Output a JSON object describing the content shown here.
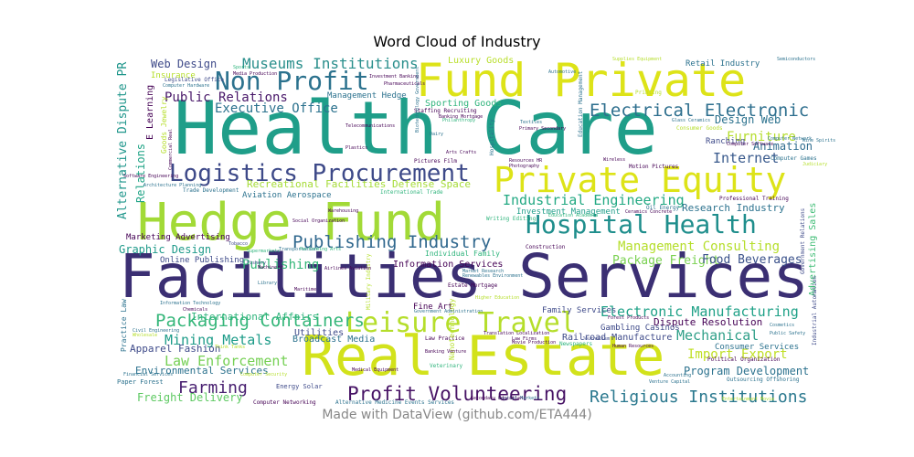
{
  "chart_data": {
    "type": "wordcloud",
    "title": "Word Cloud of Industry",
    "footer": "Made with DataView (github.com/ETA444)",
    "colormap": "viridis",
    "words": [
      {
        "text": "Health Care",
        "weight": 1.0,
        "color": "#1f9e89"
      },
      {
        "text": "Facilities Services",
        "weight": 0.92,
        "color": "#3b2f73"
      },
      {
        "text": "Real Estate",
        "weight": 0.85,
        "color": "#d2e21b"
      },
      {
        "text": "Hedge Fund",
        "weight": 0.75,
        "color": "#a2da37"
      },
      {
        "text": "Fund Private",
        "weight": 0.72,
        "color": "#dde318"
      },
      {
        "text": "Private Equity",
        "weight": 0.55,
        "color": "#dde318"
      },
      {
        "text": "Leisure Travel",
        "weight": 0.42,
        "color": "#b5de2b"
      },
      {
        "text": "Logistics Procurement",
        "weight": 0.4,
        "color": "#3e4a89"
      },
      {
        "text": "Non Profit",
        "weight": 0.4,
        "color": "#2c728e"
      },
      {
        "text": "Hospital Health",
        "weight": 0.38,
        "color": "#1f8e8c"
      },
      {
        "text": "Profit Volunteering",
        "weight": 0.33,
        "color": "#471365"
      },
      {
        "text": "Packaging Containers",
        "weight": 0.28,
        "color": "#34b679"
      },
      {
        "text": "Publishing Industry",
        "weight": 0.27,
        "color": "#31688e"
      },
      {
        "text": "Electrical Electronic",
        "weight": 0.27,
        "color": "#2e6f8e"
      },
      {
        "text": "Religious Institutions",
        "weight": 0.26,
        "color": "#2a788e"
      },
      {
        "text": "Industrial Engineering",
        "weight": 0.19,
        "color": "#23a983"
      },
      {
        "text": "Electronic Manufacturing",
        "weight": 0.19,
        "color": "#1fa187"
      },
      {
        "text": "Museums Institutions",
        "weight": 0.2,
        "color": "#2a8f8c"
      },
      {
        "text": "Farming",
        "weight": 0.2,
        "color": "#481f70"
      },
      {
        "text": "Mechanical",
        "weight": 0.18,
        "color": "#2f9f88"
      },
      {
        "text": "Furniture",
        "weight": 0.18,
        "color": "#b4dd2c"
      },
      {
        "text": "Internet",
        "weight": 0.18,
        "color": "#38598c"
      },
      {
        "text": "Law Enforcement",
        "weight": 0.17,
        "color": "#75d054"
      },
      {
        "text": "Mining Metals",
        "weight": 0.17,
        "color": "#1e9c89"
      },
      {
        "text": "Management Consulting",
        "weight": 0.16,
        "color": "#b5de2b"
      },
      {
        "text": "Import Export",
        "weight": 0.16,
        "color": "#c0df25"
      },
      {
        "text": "Public Relations",
        "weight": 0.15,
        "color": "#481769"
      },
      {
        "text": "Executive Office",
        "weight": 0.15,
        "color": "#2c728e"
      },
      {
        "text": "Publishing",
        "weight": 0.14,
        "color": "#35b779"
      },
      {
        "text": "Web Design",
        "weight": 0.13,
        "color": "#3e4a89"
      },
      {
        "text": "Design Web",
        "weight": 0.13,
        "color": "#2c728e"
      },
      {
        "text": "Animation",
        "weight": 0.13,
        "color": "#2f6c8e"
      },
      {
        "text": "Graphic Design",
        "weight": 0.13,
        "color": "#1f9a8a"
      },
      {
        "text": "Package Freight",
        "weight": 0.13,
        "color": "#7ad151"
      },
      {
        "text": "Food Beverages",
        "weight": 0.13,
        "color": "#3b528b"
      },
      {
        "text": "Program Development",
        "weight": 0.13,
        "color": "#2c728e"
      },
      {
        "text": "Freight Delivery",
        "weight": 0.13,
        "color": "#5ec962"
      },
      {
        "text": "Apparel Fashion",
        "weight": 0.12,
        "color": "#3e4a89"
      },
      {
        "text": "Environmental Services",
        "weight": 0.12,
        "color": "#2c728e"
      },
      {
        "text": "Dispute Resolution",
        "weight": 0.11,
        "color": "#440154"
      },
      {
        "text": "Research Industry",
        "weight": 0.11,
        "color": "#2c728e"
      },
      {
        "text": "Recreational Facilities Defense Space",
        "weight": 0.11,
        "color": "#a5db36"
      },
      {
        "text": "Alternative Dispute PR",
        "weight": 0.13,
        "color": "#1f968b"
      },
      {
        "text": "Relations",
        "weight": 0.12,
        "color": "#20a486"
      },
      {
        "text": "Advertising Sales",
        "weight": 0.11,
        "color": "#3dbc74"
      },
      {
        "text": "International Affairs",
        "weight": 0.11,
        "color": "#2fb47c"
      },
      {
        "text": "Luxury Goods",
        "weight": 0.1,
        "color": "#b8de29"
      },
      {
        "text": "Retail Industry",
        "weight": 0.1,
        "color": "#2c728e"
      },
      {
        "text": "Sporting Goods",
        "weight": 0.1,
        "color": "#2fb47c"
      },
      {
        "text": "Information Services",
        "weight": 0.1,
        "color": "#440154"
      },
      {
        "text": "Broadcast Media",
        "weight": 0.1,
        "color": "#2c728e"
      },
      {
        "text": "Aviation Aerospace",
        "weight": 0.09,
        "color": "#2c728e"
      },
      {
        "text": "Ranching",
        "weight": 0.09,
        "color": "#3e4a89"
      },
      {
        "text": "Utilities",
        "weight": 0.09,
        "color": "#3e4a89"
      },
      {
        "text": "Railroad Manufacture",
        "weight": 0.09,
        "color": "#3e4a89"
      },
      {
        "text": "Consumer Services",
        "weight": 0.09,
        "color": "#2c728e"
      },
      {
        "text": "Investment Management",
        "weight": 0.08,
        "color": "#1f9e89"
      },
      {
        "text": "Marketing Advertising",
        "weight": 0.08,
        "color": "#440154"
      },
      {
        "text": "Online Publishing",
        "weight": 0.08,
        "color": "#3e4a89"
      },
      {
        "text": "Fine Art",
        "weight": 0.08,
        "color": "#440154"
      },
      {
        "text": "Family Services",
        "weight": 0.07,
        "color": "#3e4a89"
      },
      {
        "text": "Management Hedge",
        "weight": 0.07,
        "color": "#2c728e"
      },
      {
        "text": "E Learning",
        "weight": 0.07,
        "color": "#440154"
      },
      {
        "text": "Insurance",
        "weight": 0.07,
        "color": "#b5de2b"
      },
      {
        "text": "Gambling Casinos",
        "weight": 0.07,
        "color": "#3e4a89"
      },
      {
        "text": "Energy Solar",
        "weight": 0.06,
        "color": "#3e4a89"
      },
      {
        "text": "Paper Forest",
        "weight": 0.06,
        "color": "#2c728e"
      },
      {
        "text": "Practice Law",
        "weight": 0.06,
        "color": "#2c728e"
      },
      {
        "text": "Goods Jewelry",
        "weight": 0.06,
        "color": "#b5de2b"
      },
      {
        "text": "Professional Training",
        "weight": 0.05,
        "color": "#440154"
      },
      {
        "text": "Industrial Automation",
        "weight": 0.05,
        "color": "#3e4a89"
      },
      {
        "text": "Government Relations",
        "weight": 0.05,
        "color": "#3e4a89"
      },
      {
        "text": "Staffing Recruiting",
        "weight": 0.05,
        "color": "#440154"
      },
      {
        "text": "Individual Family",
        "weight": 0.05,
        "color": "#2fb47c"
      },
      {
        "text": "Estate Mortgage",
        "weight": 0.05,
        "color": "#440154"
      },
      {
        "text": "Construction",
        "weight": 0.05,
        "color": "#440154"
      },
      {
        "text": "Motion Pictures",
        "weight": 0.05,
        "color": "#440154"
      },
      {
        "text": "Pictures Film",
        "weight": 0.05,
        "color": "#440154"
      },
      {
        "text": "Law Practice",
        "weight": 0.05,
        "color": "#440154"
      },
      {
        "text": "Nanotechnology",
        "weight": 0.05,
        "color": "#b5de2b"
      },
      {
        "text": "Veterinary",
        "weight": 0.05,
        "color": "#2fb47c"
      },
      {
        "text": "Hospitality",
        "weight": 0.05,
        "color": "#2c728e"
      },
      {
        "text": "Education Management",
        "weight": 0.05,
        "color": "#2c728e"
      },
      {
        "text": "Military Industry",
        "weight": 0.05,
        "color": "#b5de2b"
      },
      {
        "text": "Computer Networking",
        "weight": 0.04,
        "color": "#440154"
      },
      {
        "text": "Alternative Medicine Events Services",
        "weight": 0.04,
        "color": "#2c728e"
      },
      {
        "text": "Trade Development",
        "weight": 0.04,
        "color": "#2c728e"
      },
      {
        "text": "International Trade",
        "weight": 0.04,
        "color": "#2fb47c"
      },
      {
        "text": "Telecommunications",
        "weight": 0.04,
        "color": "#440154"
      },
      {
        "text": "Computer Hardware",
        "weight": 0.04,
        "color": "#2c728e"
      },
      {
        "text": "Legislative Office",
        "weight": 0.04,
        "color": "#3e4a89"
      },
      {
        "text": "Investment Banking",
        "weight": 0.04,
        "color": "#440154"
      },
      {
        "text": "Pharmaceuticals",
        "weight": 0.04,
        "color": "#440154"
      },
      {
        "text": "Banking Mortgage",
        "weight": 0.04,
        "color": "#440154"
      },
      {
        "text": "Philanthropy",
        "weight": 0.04,
        "color": "#2fb47c"
      },
      {
        "text": "Primary Secondary",
        "weight": 0.04,
        "color": "#440154"
      },
      {
        "text": "Dairy",
        "weight": 0.04,
        "color": "#2c728e"
      },
      {
        "text": "Biotechnology Government",
        "weight": 0.04,
        "color": "#2c728e"
      },
      {
        "text": "Textiles",
        "weight": 0.04,
        "color": "#2c728e"
      },
      {
        "text": "Automotive",
        "weight": 0.04,
        "color": "#2c728e"
      },
      {
        "text": "Printing",
        "weight": 0.04,
        "color": "#b5de2b"
      },
      {
        "text": "Supplies Equipment",
        "weight": 0.04,
        "color": "#b5de2b"
      },
      {
        "text": "Semiconductors",
        "weight": 0.04,
        "color": "#2c728e"
      },
      {
        "text": "Glass Ceramics",
        "weight": 0.04,
        "color": "#2c728e"
      },
      {
        "text": "Consumer Goods",
        "weight": 0.04,
        "color": "#b5de2b"
      },
      {
        "text": "Computer Software",
        "weight": 0.04,
        "color": "#440154"
      },
      {
        "text": "Computer Network",
        "weight": 0.04,
        "color": "#2c728e"
      },
      {
        "text": "Wireless",
        "weight": 0.04,
        "color": "#440154"
      },
      {
        "text": "Computer Games",
        "weight": 0.04,
        "color": "#2c728e"
      },
      {
        "text": "Judiciary",
        "weight": 0.04,
        "color": "#b5de2b"
      },
      {
        "text": "Photography",
        "weight": 0.04,
        "color": "#440154"
      },
      {
        "text": "Resources HR",
        "weight": 0.04,
        "color": "#440154"
      },
      {
        "text": "Plastics",
        "weight": 0.04,
        "color": "#440154"
      },
      {
        "text": "Arts Crafts",
        "weight": 0.04,
        "color": "#440154"
      },
      {
        "text": "Oil Energy",
        "weight": 0.04,
        "color": "#2c728e"
      },
      {
        "text": "Ceramics Concrete",
        "weight": 0.04,
        "color": "#440154"
      },
      {
        "text": "Writing Editing",
        "weight": 0.04,
        "color": "#2fb47c"
      },
      {
        "text": "Education Academia",
        "weight": 0.04,
        "color": "#2fb47c"
      },
      {
        "text": "Warehousing",
        "weight": 0.04,
        "color": "#440154"
      },
      {
        "text": "Social Organization",
        "weight": 0.04,
        "color": "#440154"
      },
      {
        "text": "Supermarkets",
        "weight": 0.04,
        "color": "#2fb47c"
      },
      {
        "text": "Tobacco",
        "weight": 0.04,
        "color": "#3e4a89"
      },
      {
        "text": "Transportation",
        "weight": 0.04,
        "color": "#2c728e"
      },
      {
        "text": "Performing Arts",
        "weight": 0.04,
        "color": "#2fb47c"
      },
      {
        "text": "Fishery",
        "weight": 0.04,
        "color": "#3e4a89"
      },
      {
        "text": "Machinery",
        "weight": 0.04,
        "color": "#440154"
      },
      {
        "text": "Airlines Aviation",
        "weight": 0.04,
        "color": "#440154"
      },
      {
        "text": "Library",
        "weight": 0.04,
        "color": "#2c728e"
      },
      {
        "text": "Maritime",
        "weight": 0.04,
        "color": "#440154"
      },
      {
        "text": "Market Research",
        "weight": 0.04,
        "color": "#2c728e"
      },
      {
        "text": "Renewables Environment",
        "weight": 0.04,
        "color": "#2c728e"
      },
      {
        "text": "Higher Education",
        "weight": 0.04,
        "color": "#b5de2b"
      },
      {
        "text": "Government Administration",
        "weight": 0.04,
        "color": "#2c728e"
      },
      {
        "text": "Information Technology",
        "weight": 0.04,
        "color": "#2c728e"
      },
      {
        "text": "Chemicals",
        "weight": 0.04,
        "color": "#440154"
      },
      {
        "text": "Civil Engineering",
        "weight": 0.04,
        "color": "#2c728e"
      },
      {
        "text": "Wholesale",
        "weight": 0.04,
        "color": "#b5de2b"
      },
      {
        "text": "Think Tanks",
        "weight": 0.04,
        "color": "#b5de2b"
      },
      {
        "text": "Translation Localization",
        "weight": 0.04,
        "color": "#440154"
      },
      {
        "text": "Banking Venture",
        "weight": 0.04,
        "color": "#440154"
      },
      {
        "text": "Law Firms",
        "weight": 0.04,
        "color": "#440154"
      },
      {
        "text": "Movie Production",
        "weight": 0.04,
        "color": "#440154"
      },
      {
        "text": "Newspapers",
        "weight": 0.04,
        "color": "#2fb47c"
      },
      {
        "text": "Journalism",
        "weight": 0.04,
        "color": "#3e4a89"
      },
      {
        "text": "Human Resources",
        "weight": 0.04,
        "color": "#440154"
      },
      {
        "text": "Forest Products",
        "weight": 0.04,
        "color": "#440154"
      },
      {
        "text": "Cosmetics",
        "weight": 0.04,
        "color": "#2c728e"
      },
      {
        "text": "Public Safety",
        "weight": 0.04,
        "color": "#2c728e"
      },
      {
        "text": "Political Organization",
        "weight": 0.04,
        "color": "#440154"
      },
      {
        "text": "Venture Capital",
        "weight": 0.04,
        "color": "#2c728e"
      },
      {
        "text": "Accounting",
        "weight": 0.04,
        "color": "#2c728e"
      },
      {
        "text": "Outsourcing Offshoring",
        "weight": 0.04,
        "color": "#2c728e"
      },
      {
        "text": "Entertainment Movie",
        "weight": 0.04,
        "color": "#b5de2b"
      },
      {
        "text": "Financial Services",
        "weight": 0.04,
        "color": "#2c728e"
      },
      {
        "text": "Computer Security",
        "weight": 0.04,
        "color": "#b5de2b"
      },
      {
        "text": "Medical Equipment",
        "weight": 0.04,
        "color": "#440154"
      },
      {
        "text": "Capital Markets",
        "weight": 0.04,
        "color": "#2c728e"
      },
      {
        "text": "Secondary Education",
        "weight": 0.04,
        "color": "#440154"
      },
      {
        "text": "Software Engineering",
        "weight": 0.04,
        "color": "#440154"
      },
      {
        "text": "Architecture Planning",
        "weight": 0.04,
        "color": "#2c728e"
      },
      {
        "text": "Media Production",
        "weight": 0.04,
        "color": "#440154"
      },
      {
        "text": "Commercial Real",
        "weight": 0.04,
        "color": "#440154"
      },
      {
        "text": "Sports",
        "weight": 0.04,
        "color": "#2fb47c"
      },
      {
        "text": "Wine Spirits",
        "weight": 0.04,
        "color": "#2c728e"
      },
      {
        "text": "Health Fitness",
        "weight": 0.04,
        "color": "#b5de2b"
      }
    ]
  }
}
